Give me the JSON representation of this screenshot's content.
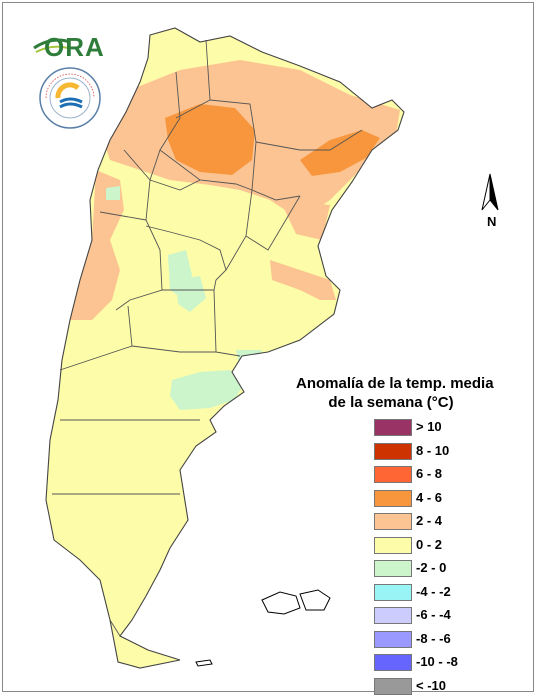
{
  "logos": {
    "ora_text": "ORA",
    "smn_seal_text": "SERVICIO METEOROLÓGICO NACIONAL · ARGENTINA"
  },
  "north_arrow": {
    "label": "N"
  },
  "legend": {
    "title_line1": "Anomalía de la temp. media",
    "title_line2": "de la semana (°C)",
    "items": [
      {
        "label": "> 10",
        "color": "#993366"
      },
      {
        "label": "8 - 10",
        "color": "#cc3300"
      },
      {
        "label": "6 - 8",
        "color": "#ff6633"
      },
      {
        "label": "4 - 6",
        "color": "#f7963d"
      },
      {
        "label": "2 - 4",
        "color": "#fbc492"
      },
      {
        "label": "0 - 2",
        "color": "#fdfca8"
      },
      {
        "label": "-2 - 0",
        "color": "#ccf5cc"
      },
      {
        "label": "-4 - -2",
        "color": "#99f5f5"
      },
      {
        "label": "-6 - -4",
        "color": "#ccccff"
      },
      {
        "label": "-8 - -6",
        "color": "#9999ff"
      },
      {
        "label": "-10 - -8",
        "color": "#6666ff"
      },
      {
        "label": "< -10",
        "color": "#999999"
      }
    ]
  },
  "map_colors": {
    "base": "#fdfca8",
    "warm": "#fbc492",
    "hot": "#f7963d",
    "cool": "#ccf5cc",
    "border": "#555555"
  }
}
